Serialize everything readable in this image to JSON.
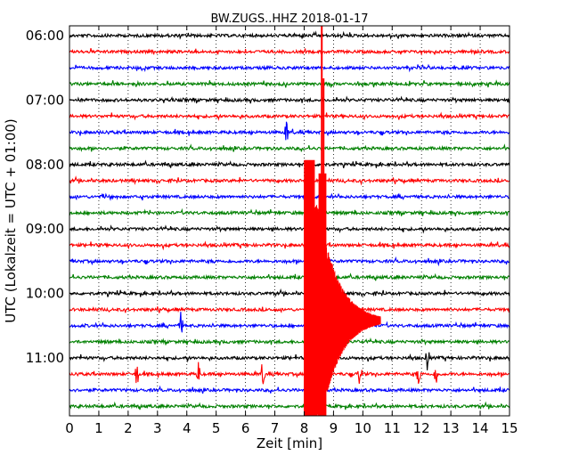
{
  "chart_data": {
    "type": "line",
    "title": "BW.ZUGS..HHZ 2018-01-17",
    "xlabel": "Zeit  [min]",
    "ylabel": "UTC (Lokalzeit = UTC + 01:00)",
    "xlim": [
      0,
      15
    ],
    "x_ticks": [
      "0",
      "1",
      "2",
      "3",
      "4",
      "5",
      "6",
      "7",
      "8",
      "9",
      "10",
      "11",
      "12",
      "13",
      "14",
      "15"
    ],
    "y_ticks": [
      "06:00",
      "07:00",
      "08:00",
      "09:00",
      "10:00",
      "11:00"
    ],
    "grid": true,
    "row_colors": [
      "#000000",
      "#ff0000",
      "#0000ff",
      "#008000"
    ],
    "rows_per_hour": 4,
    "minutes_per_row": 15,
    "first_row_start": "06:00",
    "row_count": 24,
    "earthquake": {
      "row_start": "08:00",
      "time_min": 8.6,
      "rows_affected": "08:00–11:45",
      "color": "#ff0000"
    },
    "spikes": [
      {
        "row_start": "07:30",
        "time_min": 7.4
      },
      {
        "row_start": "10:30",
        "time_min": 3.8
      },
      {
        "row_start": "11:00",
        "time_min": 12.2
      },
      {
        "row_start": "11:15",
        "time_min": 2.3
      },
      {
        "row_start": "11:15",
        "time_min": 4.4
      },
      {
        "row_start": "11:15",
        "time_min": 6.6
      },
      {
        "row_start": "11:15",
        "time_min": 9.9
      },
      {
        "row_start": "11:15",
        "time_min": 11.9
      },
      {
        "row_start": "11:15",
        "time_min": 12.5
      }
    ]
  }
}
